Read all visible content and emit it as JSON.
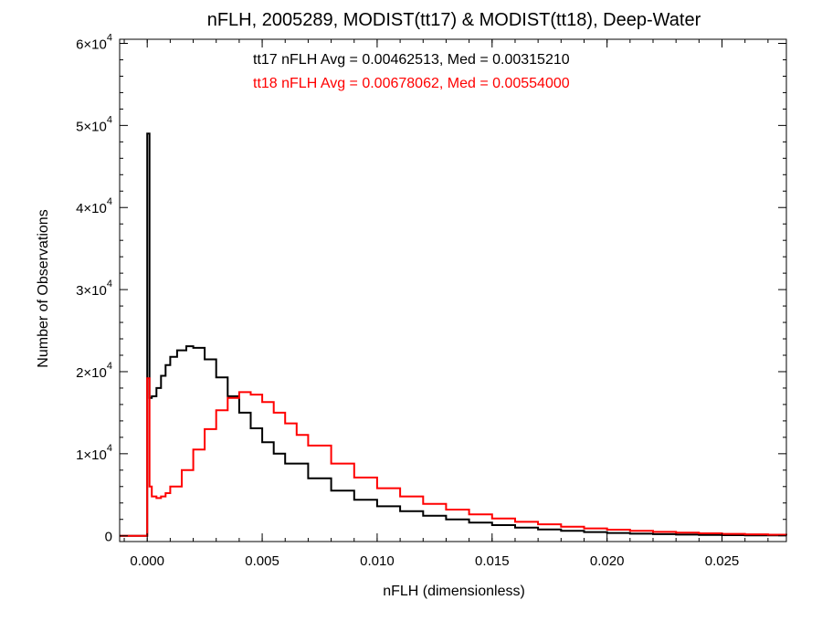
{
  "chart_data": {
    "type": "line",
    "title": "nFLH, 2005289, MODIST(tt17) & MODIST(tt18), Deep-Water",
    "xlabel": "nFLH (dimensionless)",
    "ylabel": "Number of Observations",
    "xlim": [
      -0.0012,
      0.0278
    ],
    "ylim": [
      -700,
      60500
    ],
    "x_ticks": [
      {
        "value": 0.0,
        "label": "0.000"
      },
      {
        "value": 0.005,
        "label": "0.005"
      },
      {
        "value": 0.01,
        "label": "0.010"
      },
      {
        "value": 0.015,
        "label": "0.015"
      },
      {
        "value": 0.02,
        "label": "0.020"
      },
      {
        "value": 0.025,
        "label": "0.025"
      }
    ],
    "y_ticks": [
      {
        "value": 0,
        "mantissa": "0",
        "exponent": ""
      },
      {
        "value": 10000,
        "mantissa": "1×10",
        "exponent": "4"
      },
      {
        "value": 20000,
        "mantissa": "2×10",
        "exponent": "4"
      },
      {
        "value": 30000,
        "mantissa": "3×10",
        "exponent": "4"
      },
      {
        "value": 40000,
        "mantissa": "4×10",
        "exponent": "4"
      },
      {
        "value": 50000,
        "mantissa": "5×10",
        "exponent": "4"
      },
      {
        "value": 60000,
        "mantissa": "6×10",
        "exponent": "4"
      }
    ],
    "annotations": [
      {
        "text": "tt17 nFLH Avg = 0.00462513, Med = 0.00315210",
        "color": "#000000"
      },
      {
        "text": "tt18 nFLH Avg = 0.00678062, Med = 0.00554000",
        "color": "#ff0000"
      }
    ],
    "series": [
      {
        "color": "#000000",
        "points": [
          [
            -0.0012,
            0
          ],
          [
            -0.0001,
            0
          ],
          [
            0.0,
            49000
          ],
          [
            0.0001,
            16800
          ],
          [
            0.0002,
            17000
          ],
          [
            0.0004,
            18000
          ],
          [
            0.0006,
            19500
          ],
          [
            0.0008,
            20800
          ],
          [
            0.001,
            21800
          ],
          [
            0.0013,
            22600
          ],
          [
            0.0017,
            23100
          ],
          [
            0.002,
            22900
          ],
          [
            0.0025,
            21500
          ],
          [
            0.003,
            19300
          ],
          [
            0.0035,
            17000
          ],
          [
            0.004,
            15000
          ],
          [
            0.0045,
            13100
          ],
          [
            0.005,
            11400
          ],
          [
            0.0055,
            10000
          ],
          [
            0.006,
            8800
          ],
          [
            0.007,
            7000
          ],
          [
            0.008,
            5500
          ],
          [
            0.009,
            4400
          ],
          [
            0.01,
            3600
          ],
          [
            0.011,
            3000
          ],
          [
            0.012,
            2450
          ],
          [
            0.013,
            2000
          ],
          [
            0.014,
            1600
          ],
          [
            0.015,
            1300
          ],
          [
            0.016,
            1000
          ],
          [
            0.017,
            780
          ],
          [
            0.018,
            600
          ],
          [
            0.019,
            460
          ],
          [
            0.02,
            350
          ],
          [
            0.021,
            260
          ],
          [
            0.022,
            200
          ],
          [
            0.023,
            150
          ],
          [
            0.024,
            110
          ],
          [
            0.025,
            80
          ],
          [
            0.026,
            60
          ],
          [
            0.027,
            40
          ],
          [
            0.0278,
            30
          ]
        ]
      },
      {
        "color": "#ff0000",
        "points": [
          [
            -0.0012,
            0
          ],
          [
            -0.0001,
            0
          ],
          [
            0.0,
            19200
          ],
          [
            0.0001,
            6000
          ],
          [
            0.0002,
            4800
          ],
          [
            0.0004,
            4600
          ],
          [
            0.0006,
            4800
          ],
          [
            0.0008,
            5200
          ],
          [
            0.001,
            6000
          ],
          [
            0.0015,
            8000
          ],
          [
            0.002,
            10500
          ],
          [
            0.0025,
            13000
          ],
          [
            0.003,
            15300
          ],
          [
            0.0035,
            16800
          ],
          [
            0.004,
            17500
          ],
          [
            0.0045,
            17200
          ],
          [
            0.005,
            16300
          ],
          [
            0.0055,
            15000
          ],
          [
            0.006,
            13700
          ],
          [
            0.0065,
            12300
          ],
          [
            0.007,
            11000
          ],
          [
            0.008,
            8800
          ],
          [
            0.009,
            7100
          ],
          [
            0.01,
            5800
          ],
          [
            0.011,
            4800
          ],
          [
            0.012,
            3900
          ],
          [
            0.013,
            3200
          ],
          [
            0.014,
            2600
          ],
          [
            0.015,
            2100
          ],
          [
            0.016,
            1700
          ],
          [
            0.017,
            1400
          ],
          [
            0.018,
            1100
          ],
          [
            0.019,
            900
          ],
          [
            0.02,
            750
          ],
          [
            0.021,
            600
          ],
          [
            0.022,
            480
          ],
          [
            0.023,
            380
          ],
          [
            0.024,
            300
          ],
          [
            0.025,
            230
          ],
          [
            0.026,
            180
          ],
          [
            0.027,
            130
          ],
          [
            0.0278,
            100
          ]
        ]
      }
    ]
  }
}
